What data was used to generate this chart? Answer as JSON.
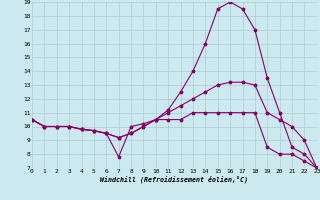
{
  "xlabel": "Windchill (Refroidissement éolien,°C)",
  "background_color": "#cbe9ef",
  "line_color": "#880066",
  "grid_color": "#aaccd0",
  "xmin": 0,
  "xmax": 23,
  "ymin": 7,
  "ymax": 19,
  "line1_x": [
    0,
    1,
    2,
    3,
    4,
    5,
    6,
    7,
    8,
    9,
    10,
    11,
    12,
    13,
    14,
    15,
    16,
    17,
    18,
    19,
    20,
    21,
    22,
    23
  ],
  "line1_y": [
    10.5,
    10.0,
    10.0,
    10.0,
    9.8,
    9.7,
    9.5,
    7.8,
    10.0,
    10.2,
    10.5,
    11.2,
    12.5,
    14.0,
    16.0,
    18.5,
    19.0,
    18.5,
    17.0,
    13.5,
    11.0,
    8.5,
    8.0,
    7.0
  ],
  "line2_x": [
    0,
    1,
    2,
    3,
    4,
    5,
    6,
    7,
    8,
    9,
    10,
    11,
    12,
    13,
    14,
    15,
    16,
    17,
    18,
    19,
    20,
    21,
    22,
    23
  ],
  "line2_y": [
    10.5,
    10.0,
    10.0,
    10.0,
    9.8,
    9.7,
    9.5,
    9.2,
    9.5,
    10.0,
    10.5,
    11.0,
    11.5,
    12.0,
    12.5,
    13.0,
    13.2,
    13.2,
    13.0,
    11.0,
    10.5,
    10.0,
    9.0,
    7.0
  ],
  "line3_x": [
    0,
    1,
    2,
    3,
    4,
    5,
    6,
    7,
    8,
    9,
    10,
    11,
    12,
    13,
    14,
    15,
    16,
    17,
    18,
    19,
    20,
    21,
    22,
    23
  ],
  "line3_y": [
    10.5,
    10.0,
    10.0,
    10.0,
    9.8,
    9.7,
    9.5,
    9.2,
    9.5,
    10.0,
    10.5,
    10.5,
    10.5,
    11.0,
    11.0,
    11.0,
    11.0,
    11.0,
    11.0,
    8.5,
    8.0,
    8.0,
    7.5,
    7.0
  ]
}
